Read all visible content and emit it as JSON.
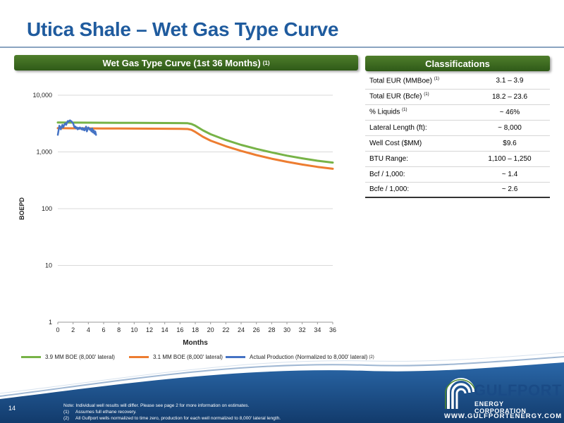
{
  "slide": {
    "title": "Utica Shale – Wet Gas Type Curve",
    "page_number": "14"
  },
  "chart_panel": {
    "header": "Wet Gas Type Curve (1st 36 Months)",
    "header_note": "(1)"
  },
  "classifications": {
    "header": "Classifications",
    "rows": [
      {
        "label": "Total EUR (MMBoe)",
        "note": "(1)",
        "value": "3.1 – 3.9"
      },
      {
        "label": "Total EUR (Bcfe)",
        "note": "(1)",
        "value": "18.2 – 23.6"
      },
      {
        "label": "% Liquids",
        "note": "(1)",
        "value": "~ 46%"
      },
      {
        "label": "Lateral Length (ft):",
        "note": "",
        "value": "~ 8,000"
      },
      {
        "label": "Well Cost ($MM)",
        "note": "",
        "value": "$9.6"
      },
      {
        "label": "BTU Range:",
        "note": "",
        "value": "1,100 – 1,250"
      },
      {
        "label": "Bcf / 1,000:",
        "note": "",
        "value": "~ 1.4"
      },
      {
        "label": "Bcfe / 1,000:",
        "note": "",
        "value": "~ 2.6"
      }
    ]
  },
  "chart_data": {
    "type": "line",
    "title": "",
    "xlabel": "Months",
    "ylabel": "BOEPD",
    "xlim": [
      0,
      36
    ],
    "ylim": [
      1,
      10000
    ],
    "yscale": "log",
    "grid": "horizontal",
    "legend_position": "bottom",
    "x_ticks": [
      0,
      2,
      4,
      6,
      8,
      10,
      12,
      14,
      16,
      18,
      20,
      22,
      24,
      26,
      28,
      30,
      32,
      34,
      36
    ],
    "y_ticks": [
      1,
      10,
      100,
      1000,
      10000
    ],
    "y_tick_labels": [
      "1",
      "10",
      "100",
      "1,000",
      "10,000"
    ],
    "series": [
      {
        "name": "3.9 MM BOE (8,000' lateral)",
        "color": "#77b347",
        "x": [
          0,
          2,
          4,
          6,
          8,
          10,
          12,
          14,
          16,
          17,
          17.5,
          18,
          19,
          20,
          22,
          24,
          26,
          28,
          30,
          32,
          34,
          36
        ],
        "y": [
          3300,
          3290,
          3280,
          3270,
          3260,
          3250,
          3240,
          3230,
          3220,
          3200,
          3100,
          2900,
          2400,
          2050,
          1620,
          1330,
          1130,
          980,
          860,
          770,
          700,
          650
        ]
      },
      {
        "name": "3.1 MM BOE (8,000' lateral)",
        "color": "#ed7d31",
        "x": [
          0,
          2,
          4,
          6,
          8,
          10,
          12,
          14,
          16,
          17,
          17.5,
          18,
          19,
          20,
          22,
          24,
          26,
          28,
          30,
          32,
          34,
          36
        ],
        "y": [
          2620,
          2610,
          2600,
          2595,
          2590,
          2580,
          2570,
          2560,
          2550,
          2530,
          2450,
          2250,
          1850,
          1580,
          1260,
          1040,
          880,
          760,
          670,
          600,
          545,
          505
        ]
      },
      {
        "name": "Actual Production (Normalized to 8,000' lateral)",
        "name_note": "(2)",
        "color": "#4472c4",
        "x": [
          0,
          0.1,
          0.2,
          0.3,
          0.4,
          0.5,
          0.6,
          0.7,
          0.8,
          0.9,
          1.0,
          1.1,
          1.2,
          1.3,
          1.4,
          1.5,
          1.6,
          1.7,
          1.8,
          1.9,
          2.0,
          2.1,
          2.2,
          2.3,
          2.4,
          2.5,
          2.6,
          2.7,
          2.8,
          2.9,
          3.0,
          3.1,
          3.2,
          3.3,
          3.4,
          3.5,
          3.6,
          3.7,
          3.8,
          3.9,
          4.0,
          4.1,
          4.2,
          4.3,
          4.4,
          4.5,
          4.6,
          4.7,
          4.8,
          4.9,
          5.0
        ],
        "y": [
          2000,
          2400,
          2900,
          2700,
          2500,
          2800,
          3000,
          2700,
          2900,
          3100,
          3200,
          3000,
          3300,
          3500,
          3400,
          3550,
          3600,
          3500,
          3450,
          3300,
          3200,
          2900,
          2700,
          2800,
          2600,
          2700,
          2500,
          2650,
          2550,
          2700,
          2600,
          2500,
          2650,
          2450,
          2600,
          2400,
          2550,
          2800,
          2300,
          2500,
          2700,
          2600,
          2450,
          2550,
          2300,
          2600,
          2200,
          2400,
          2100,
          2300,
          2000
        ]
      }
    ]
  },
  "notes": {
    "intro": "Note: Individual well results will differ. Please see page 2 for more information on estimates.",
    "items": [
      {
        "mark": "(1)",
        "text": "Assumes full ethane recovery."
      },
      {
        "mark": "(2)",
        "text": "All Gulfport wells normalized to time zero, production for each well normalized to 8,000' lateral length."
      }
    ]
  },
  "logo": {
    "name": "GULFPORT",
    "subtitle": "ENERGY CORPORATION",
    "url": "WWW.GULFPORTENERGY.COM"
  },
  "colors": {
    "title": "#1f5b9e",
    "header_green": "#3f6e22",
    "footer_blue": "#1b4f8a"
  }
}
